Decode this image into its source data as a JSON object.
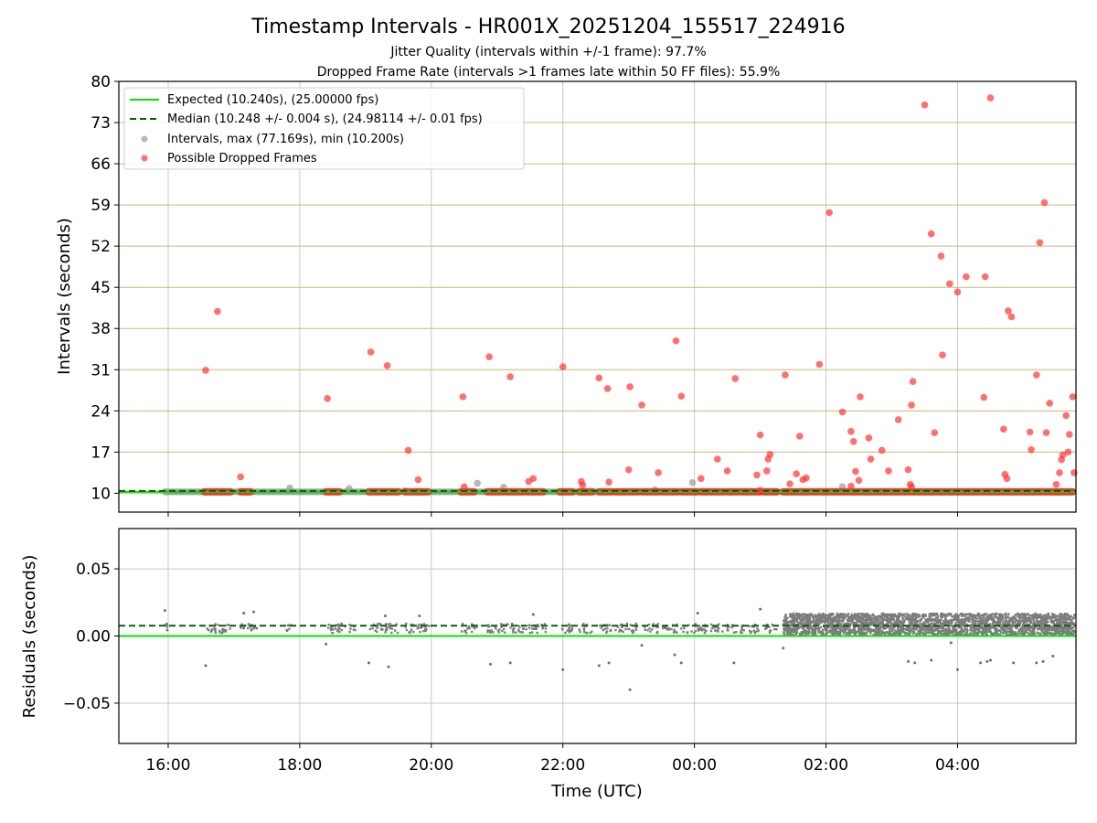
{
  "chart_data": {
    "type": "scatter",
    "title": "Timestamp Intervals - HR001X_20251204_155517_224916",
    "subtitles": [
      "Jitter Quality (intervals within +/-1 frame): 97.7%",
      "Dropped Frame Rate (intervals >1 frames late within 50 FF files): 55.9%"
    ],
    "xlabel": "Time (UTC)",
    "x_unit": "hours since 00:00 UTC of first day",
    "xlim": [
      15.25,
      29.8
    ],
    "xticks": [
      {
        "value": 16,
        "label": "16:00"
      },
      {
        "value": 18,
        "label": "18:00"
      },
      {
        "value": 20,
        "label": "20:00"
      },
      {
        "value": 22,
        "label": "22:00"
      },
      {
        "value": 24,
        "label": "00:00"
      },
      {
        "value": 26,
        "label": "02:00"
      },
      {
        "value": 28,
        "label": "04:00"
      }
    ],
    "panels": [
      {
        "name": "intervals",
        "ylabel": "Intervals (seconds)",
        "ylim": [
          6.8,
          80
        ],
        "yticks": [
          {
            "value": 10,
            "label": "10"
          },
          {
            "value": 17,
            "label": "17"
          },
          {
            "value": 24,
            "label": "24"
          },
          {
            "value": 31,
            "label": "31"
          },
          {
            "value": 38,
            "label": "38"
          },
          {
            "value": 45,
            "label": "45"
          },
          {
            "value": 52,
            "label": "52"
          },
          {
            "value": 59,
            "label": "59"
          },
          {
            "value": 66,
            "label": "66"
          },
          {
            "value": 73,
            "label": "73"
          },
          {
            "value": 80,
            "label": "80"
          }
        ],
        "legend": [
          {
            "label": "Expected (10.240s), (25.00000 fps)",
            "kind": "line",
            "color": "#00e600",
            "dash": false
          },
          {
            "label": "Median (10.248 +/- 0.004 s), (24.98114 +/- 0.01 fps)",
            "kind": "line",
            "color": "#006400",
            "dash": true
          },
          {
            "label": "Intervals, max (77.169s), min (10.200s)",
            "kind": "marker",
            "color": "#999999"
          },
          {
            "label": "Possible Dropped Frames",
            "kind": "marker",
            "color": "#ff3333"
          }
        ],
        "expected": 10.24,
        "median": 10.248,
        "interval_points": [
          [
            15.95,
            10.25
          ],
          [
            17.85,
            10.9
          ],
          [
            18.75,
            10.8
          ],
          [
            20.7,
            11.7
          ],
          [
            21.1,
            11.0
          ],
          [
            23.97,
            11.8
          ],
          [
            26.25,
            11.1
          ],
          [
            23.4,
            10.6
          ],
          [
            19.6,
            10.4
          ]
        ],
        "dropped_segments": [
          [
            16.55,
            16.95
          ],
          [
            17.1,
            17.25
          ],
          [
            18.4,
            18.6
          ],
          [
            19.05,
            19.25
          ],
          [
            19.3,
            19.5
          ],
          [
            19.6,
            19.95
          ],
          [
            20.45,
            20.65
          ],
          [
            20.85,
            21.1
          ],
          [
            21.15,
            21.4
          ],
          [
            21.45,
            21.7
          ],
          [
            21.95,
            22.15
          ],
          [
            22.25,
            22.45
          ],
          [
            22.55,
            22.75
          ],
          [
            22.8,
            23.15
          ],
          [
            23.2,
            23.45
          ],
          [
            23.5,
            23.75
          ],
          [
            23.8,
            24.05
          ],
          [
            24.1,
            24.2
          ],
          [
            24.25,
            24.45
          ],
          [
            24.5,
            24.65
          ],
          [
            24.7,
            25.0
          ],
          [
            25.05,
            25.25
          ],
          [
            25.35,
            29.75
          ]
        ],
        "dropped_points": [
          [
            16.57,
            30.9
          ],
          [
            16.75,
            40.9
          ],
          [
            17.1,
            12.8
          ],
          [
            18.42,
            26.1
          ],
          [
            19.08,
            34.0
          ],
          [
            19.33,
            31.7
          ],
          [
            19.65,
            17.3
          ],
          [
            19.8,
            12.3
          ],
          [
            20.48,
            26.4
          ],
          [
            20.5,
            11.1
          ],
          [
            20.88,
            33.2
          ],
          [
            21.2,
            29.8
          ],
          [
            21.48,
            12.0
          ],
          [
            21.55,
            12.5
          ],
          [
            22.0,
            31.5
          ],
          [
            22.28,
            12.0
          ],
          [
            22.3,
            11.4
          ],
          [
            22.55,
            29.6
          ],
          [
            22.68,
            27.8
          ],
          [
            22.7,
            11.9
          ],
          [
            23.02,
            28.1
          ],
          [
            23.0,
            14.0
          ],
          [
            23.2,
            25.0
          ],
          [
            23.45,
            13.5
          ],
          [
            23.72,
            35.9
          ],
          [
            23.8,
            26.5
          ],
          [
            24.1,
            12.5
          ],
          [
            24.35,
            15.8
          ],
          [
            24.5,
            13.8
          ],
          [
            24.62,
            29.5
          ],
          [
            24.95,
            13.1
          ],
          [
            25.0,
            19.9
          ],
          [
            25.1,
            13.8
          ],
          [
            25.12,
            15.8
          ],
          [
            25.15,
            16.6
          ],
          [
            25.38,
            30.1
          ],
          [
            25.45,
            11.6
          ],
          [
            25.55,
            13.3
          ],
          [
            25.6,
            19.7
          ],
          [
            25.65,
            12.3
          ],
          [
            25.7,
            12.6
          ],
          [
            25.9,
            31.9
          ],
          [
            26.05,
            57.7
          ],
          [
            26.25,
            23.8
          ],
          [
            26.38,
            20.5
          ],
          [
            26.42,
            18.8
          ],
          [
            26.45,
            13.7
          ],
          [
            26.5,
            12.2
          ],
          [
            26.52,
            26.4
          ],
          [
            26.65,
            19.4
          ],
          [
            26.68,
            15.8
          ],
          [
            26.85,
            17.3
          ],
          [
            26.95,
            13.8
          ],
          [
            27.1,
            22.5
          ],
          [
            27.25,
            14.0
          ],
          [
            27.28,
            11.5
          ],
          [
            27.3,
            25.0
          ],
          [
            27.32,
            29.0
          ],
          [
            27.5,
            76.0
          ],
          [
            27.6,
            54.1
          ],
          [
            27.65,
            20.3
          ],
          [
            27.75,
            50.3
          ],
          [
            27.77,
            33.5
          ],
          [
            27.88,
            45.6
          ],
          [
            28.0,
            44.2
          ],
          [
            28.13,
            46.8
          ],
          [
            28.4,
            26.3
          ],
          [
            28.42,
            46.8
          ],
          [
            28.5,
            77.2
          ],
          [
            28.7,
            20.9
          ],
          [
            28.72,
            13.2
          ],
          [
            28.75,
            12.5
          ],
          [
            28.77,
            41.0
          ],
          [
            28.82,
            40.0
          ],
          [
            29.1,
            20.4
          ],
          [
            29.12,
            17.4
          ],
          [
            29.2,
            30.1
          ],
          [
            29.25,
            52.6
          ],
          [
            29.32,
            59.4
          ],
          [
            29.35,
            20.3
          ],
          [
            29.4,
            25.3
          ],
          [
            29.5,
            11.5
          ],
          [
            29.55,
            13.5
          ],
          [
            29.58,
            15.7
          ],
          [
            29.6,
            16.5
          ],
          [
            29.65,
            23.2
          ],
          [
            29.68,
            17.0
          ],
          [
            29.7,
            20.0
          ],
          [
            29.75,
            26.4
          ],
          [
            29.77,
            13.5
          ],
          [
            25.0,
            10.5
          ],
          [
            26.38,
            11.2
          ],
          [
            27.3,
            11.1
          ]
        ]
      },
      {
        "name": "residuals",
        "ylabel": "Residuals (seconds)",
        "ylim": [
          -0.08,
          0.08
        ],
        "yticks": [
          {
            "value": 0.05,
            "label": "0.05"
          },
          {
            "value": 0.0,
            "label": "0.00"
          },
          {
            "value": -0.05,
            "label": "−0.05"
          }
        ],
        "expected": 0.0,
        "median": 0.0077,
        "residual_clusters": [
          [
            15.95,
            16.0
          ],
          [
            16.55,
            16.95
          ],
          [
            17.1,
            17.35
          ],
          [
            17.8,
            17.9
          ],
          [
            18.4,
            18.7
          ],
          [
            18.75,
            18.85
          ],
          [
            19.05,
            19.5
          ],
          [
            19.6,
            20.0
          ],
          [
            20.45,
            20.7
          ],
          [
            20.85,
            21.45
          ],
          [
            21.45,
            21.75
          ],
          [
            21.95,
            22.15
          ],
          [
            22.25,
            22.45
          ],
          [
            22.55,
            22.75
          ],
          [
            22.8,
            23.15
          ],
          [
            23.2,
            23.45
          ],
          [
            23.5,
            23.75
          ],
          [
            23.8,
            24.2
          ],
          [
            24.25,
            24.45
          ],
          [
            24.5,
            24.65
          ],
          [
            24.7,
            25.0
          ],
          [
            25.05,
            25.25
          ]
        ],
        "dense_range": [
          25.35,
          29.78
        ],
        "residual_outliers": [
          [
            15.95,
            0.019
          ],
          [
            16.57,
            -0.022
          ],
          [
            17.3,
            0.018
          ],
          [
            17.15,
            0.017
          ],
          [
            18.4,
            -0.006
          ],
          [
            19.05,
            -0.02
          ],
          [
            19.35,
            -0.023
          ],
          [
            19.3,
            0.015
          ],
          [
            19.82,
            0.015
          ],
          [
            20.9,
            -0.021
          ],
          [
            21.2,
            -0.02
          ],
          [
            21.55,
            0.016
          ],
          [
            22.0,
            -0.025
          ],
          [
            22.55,
            -0.022
          ],
          [
            22.7,
            -0.02
          ],
          [
            23.02,
            -0.04
          ],
          [
            23.2,
            -0.007
          ],
          [
            23.7,
            -0.014
          ],
          [
            23.8,
            -0.02
          ],
          [
            24.05,
            0.017
          ],
          [
            24.6,
            -0.02
          ],
          [
            25.35,
            -0.009
          ],
          [
            25.0,
            0.02
          ],
          [
            27.25,
            -0.019
          ],
          [
            27.35,
            -0.02
          ],
          [
            27.6,
            -0.018
          ],
          [
            27.9,
            -0.005
          ],
          [
            28.0,
            -0.025
          ],
          [
            28.35,
            -0.02
          ],
          [
            28.45,
            -0.019
          ],
          [
            28.5,
            -0.018
          ],
          [
            28.85,
            -0.02
          ],
          [
            29.2,
            -0.02
          ],
          [
            29.3,
            -0.019
          ],
          [
            29.45,
            -0.015
          ]
        ]
      }
    ]
  }
}
